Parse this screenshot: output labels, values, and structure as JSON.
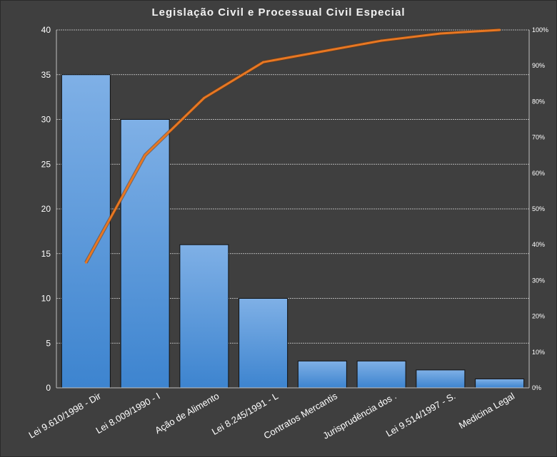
{
  "chart_data": {
    "type": "bar",
    "title": "Legislação Civil e Processual Civil Especial",
    "categories": [
      "Lei 9.610/1998 - Dir",
      "Lei 8.009/1990 - I",
      "Ação de Alimento",
      "Lei 8.245/1991 - L",
      "Contratos Mercantis",
      "Jurisprudência dos .",
      "Lei 9.514/1997 - S.",
      "Medicina Legal"
    ],
    "series": [
      {
        "type": "bar",
        "values": [
          35,
          30,
          16,
          10,
          3,
          3,
          2,
          1
        ],
        "color": "#4a90d9"
      },
      {
        "type": "line",
        "axis": "secondary",
        "values": [
          35,
          65,
          81,
          91,
          94,
          97,
          99,
          100
        ],
        "color": "#e87722"
      }
    ],
    "ylim": [
      0,
      40
    ],
    "yticks": [
      0,
      5,
      10,
      15,
      20,
      25,
      30,
      35,
      40
    ],
    "y2lim": [
      0,
      100
    ],
    "y2ticks": [
      "0%",
      "10%",
      "20%",
      "30%",
      "40%",
      "50%",
      "60%",
      "70%",
      "80%",
      "90%",
      "100%"
    ],
    "grid": true,
    "xlabel": "",
    "ylabel": ""
  }
}
